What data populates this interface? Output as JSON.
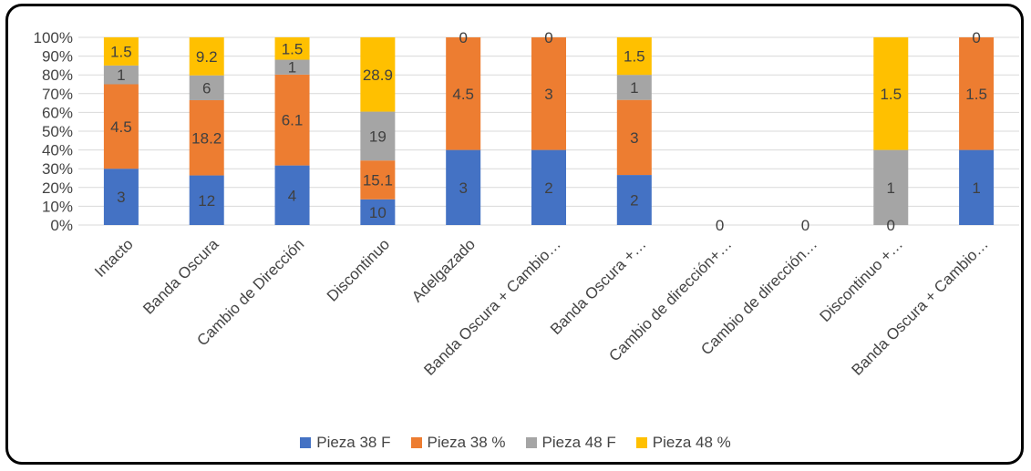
{
  "chart_data": {
    "type": "bar",
    "stacked": "percent",
    "title": "",
    "xlabel": "",
    "ylabel": "",
    "ylim": [
      0,
      100
    ],
    "y_ticks": [
      "0%",
      "10%",
      "20%",
      "30%",
      "40%",
      "50%",
      "60%",
      "70%",
      "80%",
      "90%",
      "100%"
    ],
    "grid": true,
    "legend_position": "bottom",
    "categories": [
      "Intacto",
      "Banda Oscura",
      "Cambio de Dirección",
      "Discontinuo",
      "Adelgazado",
      "Banda Oscura + Cambio…",
      "Banda Oscura +…",
      "Cambio de dirección+…",
      "Cambio de dirección…",
      "Discontinuo +…",
      "Banda Oscura + Cambio…"
    ],
    "series": [
      {
        "name": "Pieza 38 F",
        "color": "#4472C4",
        "values": [
          3,
          12,
          4,
          10,
          3,
          2,
          2,
          null,
          null,
          0,
          1
        ],
        "labels": [
          "3",
          "12",
          "4",
          "10",
          "3",
          "2",
          "2",
          "",
          "",
          "",
          "1"
        ]
      },
      {
        "name": "Pieza 38 %",
        "color": "#ED7D31",
        "values": [
          4.5,
          18.2,
          6.1,
          15.1,
          4.5,
          3,
          3,
          null,
          null,
          0,
          1.5
        ],
        "labels": [
          "4.5",
          "18.2",
          "6.1",
          "15.1",
          "4.5",
          "3",
          "3",
          "",
          "",
          "",
          "1.5"
        ]
      },
      {
        "name": "Pieza 48 F",
        "color": "#A5A5A5",
        "values": [
          1,
          6,
          1,
          19,
          0,
          0,
          1,
          null,
          null,
          1,
          0
        ],
        "labels": [
          "1",
          "6",
          "1",
          "19",
          "",
          "",
          "1",
          "",
          "",
          "1",
          ""
        ]
      },
      {
        "name": "Pieza 48 %",
        "color": "#FFC000",
        "values": [
          1.5,
          9.2,
          1.5,
          28.9,
          0,
          0,
          1.5,
          null,
          null,
          1.5,
          0
        ],
        "labels": [
          "1.5",
          "9.2",
          "1.5",
          "28.9",
          "0",
          "0",
          "1.5",
          "",
          "",
          "1.5",
          "0"
        ]
      }
    ],
    "annotations": [
      {
        "category_index": 7,
        "text": "0"
      },
      {
        "category_index": 8,
        "text": "0"
      },
      {
        "category_index": 9,
        "text": "0"
      }
    ]
  }
}
